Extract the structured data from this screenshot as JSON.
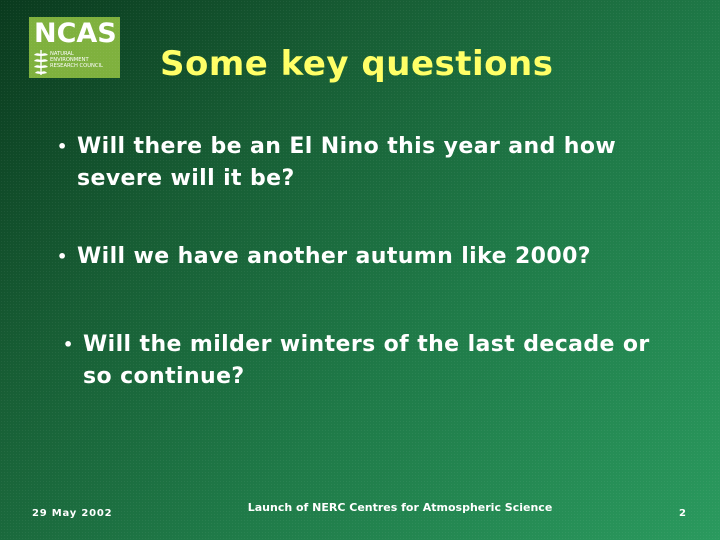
{
  "logo": {
    "name": "NCAS",
    "sub_lines": [
      "NATURAL",
      "ENVIRONMENT",
      "RESEARCH COUNCIL"
    ],
    "background_color": "#7fb13e",
    "icon": "fern-icon"
  },
  "title": "Some key questions",
  "title_color": "#ffff66",
  "bullets": [
    {
      "lines": [
        "Will there be an El Nino this year and how",
        "severe will it be?"
      ]
    },
    {
      "lines": [
        "Will we have another autumn like 2000?"
      ]
    },
    {
      "lines": [
        "Will the milder winters of the last decade or",
        "so continue?"
      ]
    }
  ],
  "bullet_glyph": "•",
  "footer": {
    "date": "29 May 2002",
    "center": "Launch of NERC Centres for Atmospheric Science",
    "page": "2"
  }
}
